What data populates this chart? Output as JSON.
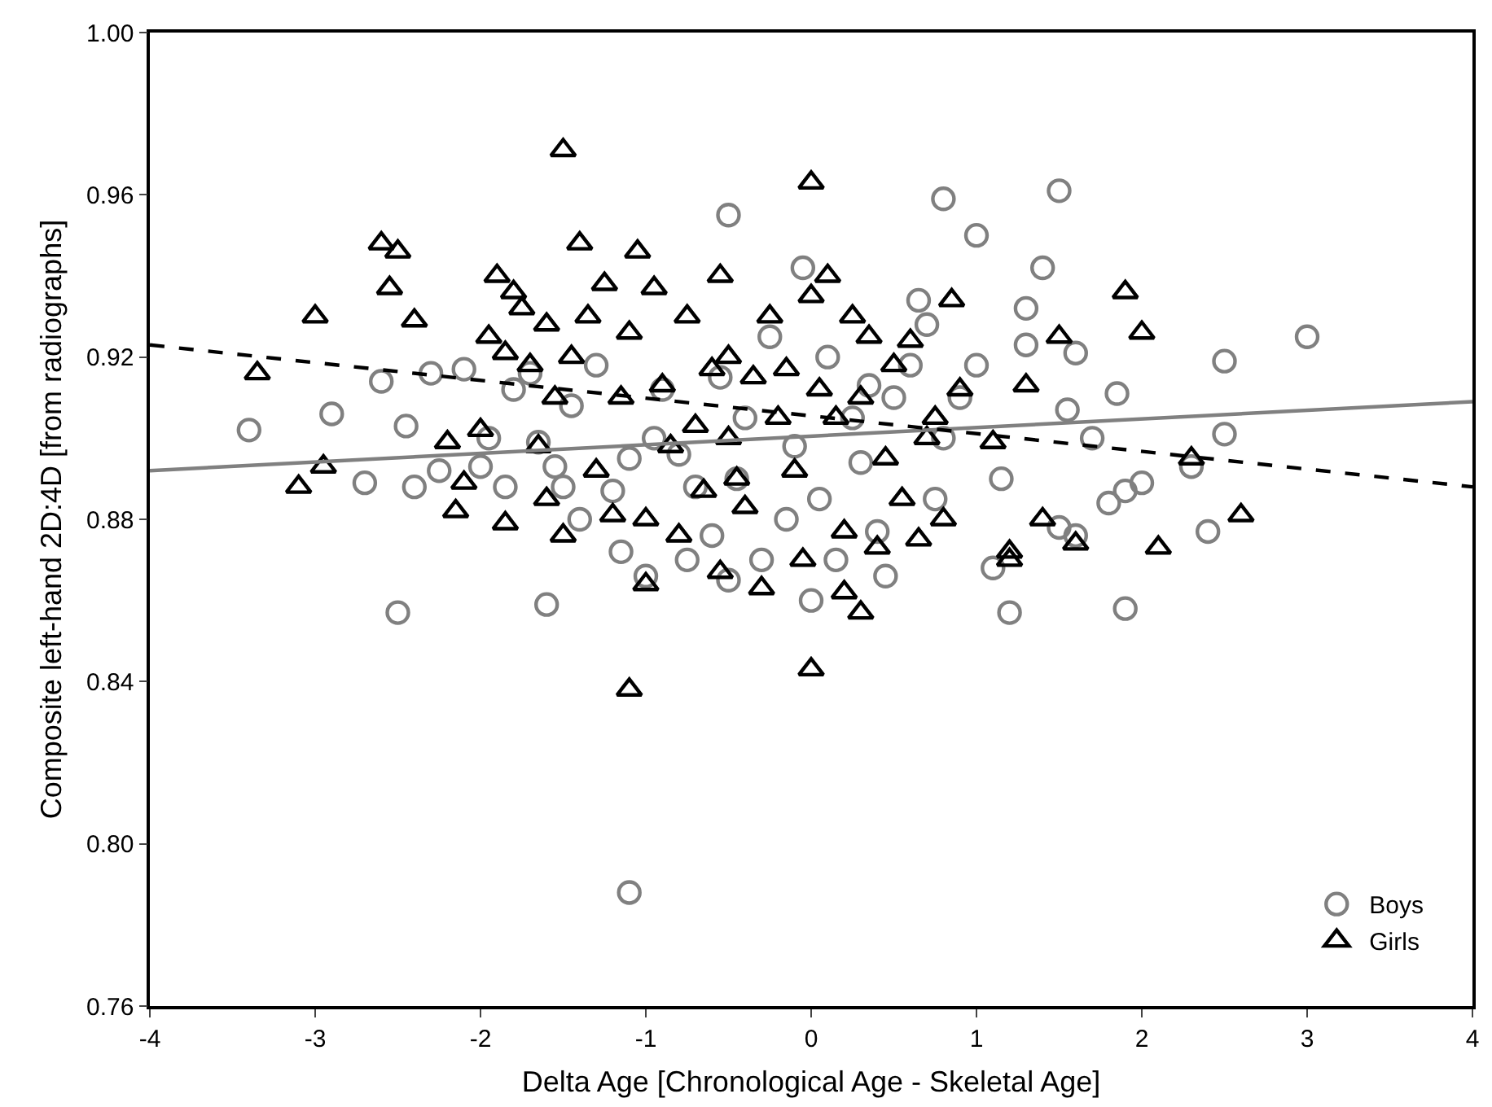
{
  "chart_data": {
    "type": "scatter",
    "xlabel": "Delta Age [Chronological Age - Skeletal Age]",
    "ylabel": "Composite left-hand 2D:4D [from radiographs]",
    "xlim": [
      -4,
      4
    ],
    "xticks": [
      -4,
      -3,
      -2,
      -1,
      0,
      1,
      2,
      3,
      4
    ],
    "ylim": [
      0.76,
      1.0
    ],
    "yticks": [
      {
        "value": 0.76,
        "label": "0.76"
      },
      {
        "value": 0.8,
        "label": "0.80"
      },
      {
        "value": 0.84,
        "label": "0.84"
      },
      {
        "value": 0.88,
        "label": "0.88"
      },
      {
        "value": 0.92,
        "label": "0.92"
      },
      {
        "value": 0.96,
        "label": "0.96"
      },
      {
        "value": 1.0,
        "label": "1.00"
      }
    ],
    "grid": false,
    "legend": "bottom right",
    "series": [
      {
        "name": "Boys",
        "marker": "circle",
        "color": "#808080",
        "x": [
          -3.4,
          -2.9,
          -2.7,
          -2.6,
          -2.5,
          -2.45,
          -2.4,
          -2.3,
          -2.25,
          -2.1,
          -2.0,
          -1.95,
          -1.85,
          -1.8,
          -1.7,
          -1.65,
          -1.6,
          -1.55,
          -1.5,
          -1.45,
          -1.4,
          -1.3,
          -1.2,
          -1.15,
          -1.1,
          -1.1,
          -1.0,
          -0.95,
          -0.9,
          -0.8,
          -0.75,
          -0.7,
          -0.6,
          -0.55,
          -0.5,
          -0.5,
          -0.45,
          -0.4,
          -0.3,
          -0.25,
          -0.15,
          -0.1,
          -0.05,
          0,
          0.05,
          0.1,
          0.15,
          0.25,
          0.3,
          0.35,
          0.4,
          0.45,
          0.5,
          0.6,
          0.65,
          0.7,
          0.75,
          0.8,
          0.8,
          0.9,
          1.0,
          1.0,
          1.1,
          1.15,
          1.2,
          1.3,
          1.3,
          1.4,
          1.5,
          1.5,
          1.55,
          1.6,
          1.6,
          1.7,
          1.8,
          1.85,
          1.9,
          1.9,
          2.0,
          2.3,
          2.4,
          2.5,
          2.5,
          3.0
        ],
        "values": [
          0.902,
          0.906,
          0.889,
          0.914,
          0.857,
          0.903,
          0.888,
          0.916,
          0.892,
          0.917,
          0.893,
          0.9,
          0.888,
          0.912,
          0.916,
          0.899,
          0.859,
          0.893,
          0.888,
          0.908,
          0.88,
          0.918,
          0.887,
          0.872,
          0.788,
          0.895,
          0.866,
          0.9,
          0.912,
          0.896,
          0.87,
          0.888,
          0.876,
          0.915,
          0.955,
          0.865,
          0.89,
          0.905,
          0.87,
          0.925,
          0.88,
          0.898,
          0.942,
          0.86,
          0.885,
          0.92,
          0.87,
          0.905,
          0.894,
          0.913,
          0.877,
          0.866,
          0.91,
          0.918,
          0.934,
          0.928,
          0.885,
          0.959,
          0.9,
          0.91,
          0.95,
          0.918,
          0.868,
          0.89,
          0.857,
          0.932,
          0.923,
          0.942,
          0.961,
          0.878,
          0.907,
          0.921,
          0.876,
          0.9,
          0.884,
          0.911,
          0.858,
          0.887,
          0.889,
          0.893,
          0.877,
          0.919,
          0.901,
          0.925
        ]
      },
      {
        "name": "Girls",
        "marker": "triangle",
        "color": "#000000",
        "x": [
          -3.35,
          -3.1,
          -3.0,
          -2.95,
          -2.6,
          -2.55,
          -2.5,
          -2.4,
          -2.2,
          -2.15,
          -2.1,
          -2.0,
          -1.95,
          -1.9,
          -1.85,
          -1.85,
          -1.8,
          -1.75,
          -1.7,
          -1.65,
          -1.6,
          -1.6,
          -1.55,
          -1.5,
          -1.5,
          -1.45,
          -1.4,
          -1.35,
          -1.3,
          -1.25,
          -1.2,
          -1.15,
          -1.1,
          -1.1,
          -1.05,
          -1.0,
          -1.0,
          -0.95,
          -0.9,
          -0.85,
          -0.8,
          -0.75,
          -0.7,
          -0.65,
          -0.6,
          -0.55,
          -0.55,
          -0.5,
          -0.5,
          -0.45,
          -0.4,
          -0.35,
          -0.3,
          -0.25,
          -0.2,
          -0.15,
          -0.1,
          -0.05,
          0,
          0,
          0,
          0.05,
          0.1,
          0.15,
          0.2,
          0.2,
          0.25,
          0.3,
          0.3,
          0.35,
          0.4,
          0.45,
          0.5,
          0.55,
          0.6,
          0.65,
          0.7,
          0.75,
          0.8,
          0.85,
          0.9,
          1.1,
          1.2,
          1.2,
          1.3,
          1.4,
          1.5,
          1.6,
          1.9,
          2.0,
          2.1,
          2.3,
          2.6
        ],
        "values": [
          0.916,
          0.888,
          0.93,
          0.893,
          0.948,
          0.937,
          0.946,
          0.929,
          0.899,
          0.882,
          0.889,
          0.902,
          0.925,
          0.94,
          0.879,
          0.921,
          0.936,
          0.932,
          0.918,
          0.898,
          0.928,
          0.885,
          0.91,
          0.971,
          0.876,
          0.92,
          0.948,
          0.93,
          0.892,
          0.938,
          0.881,
          0.91,
          0.838,
          0.926,
          0.946,
          0.864,
          0.88,
          0.937,
          0.913,
          0.898,
          0.876,
          0.93,
          0.903,
          0.887,
          0.917,
          0.867,
          0.94,
          0.92,
          0.9,
          0.89,
          0.883,
          0.915,
          0.863,
          0.93,
          0.905,
          0.917,
          0.892,
          0.87,
          0.935,
          0.843,
          0.963,
          0.912,
          0.94,
          0.905,
          0.877,
          0.862,
          0.93,
          0.857,
          0.91,
          0.925,
          0.873,
          0.895,
          0.918,
          0.885,
          0.924,
          0.875,
          0.9,
          0.905,
          0.88,
          0.934,
          0.912,
          0.899,
          0.872,
          0.87,
          0.913,
          0.88,
          0.925,
          0.874,
          0.936,
          0.926,
          0.873,
          0.895,
          0.881
        ]
      },
      {
        "type": "line",
        "line_style": "solid",
        "color": "#808080",
        "x": [
          -4,
          4
        ],
        "values": [
          0.892,
          0.909
        ]
      },
      {
        "type": "line",
        "line_style": "dashed",
        "color": "#000000",
        "x": [
          -4,
          4
        ],
        "values": [
          0.923,
          0.888
        ]
      }
    ]
  }
}
